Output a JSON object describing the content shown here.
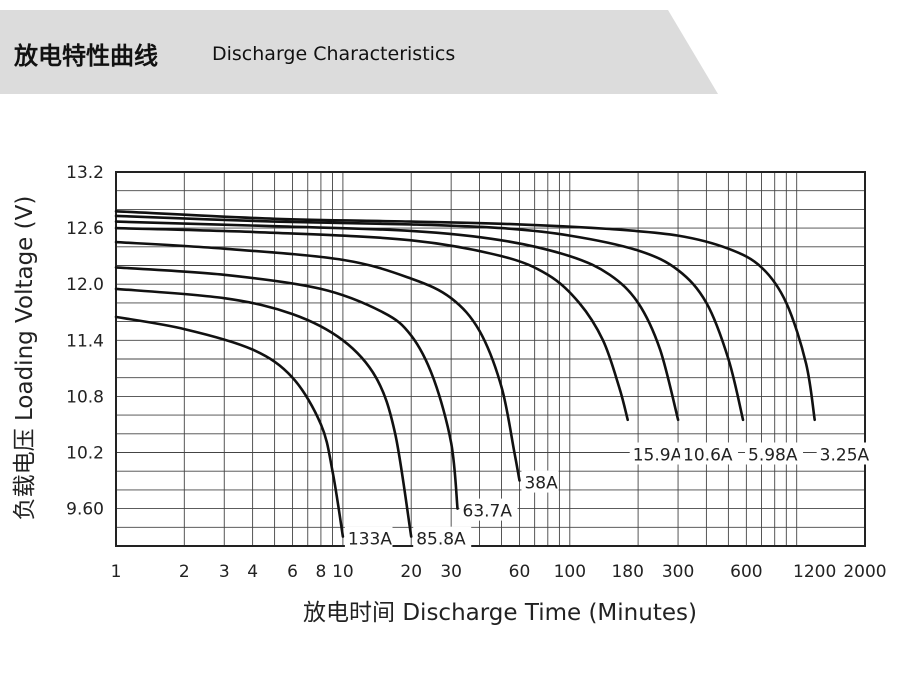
{
  "header": {
    "title_cn": "放电特性曲线",
    "title_en": "Discharge Characteristics"
  },
  "colors": {
    "banner": "#dcdcdc",
    "line": "#111111",
    "grid": "#444444"
  },
  "chart_data": {
    "type": "line",
    "title": "",
    "xlabel": "放电时间 Discharge Time (Minutes)",
    "ylabel": "负载电压 Loading Voltage (V)",
    "xscale": "log",
    "xlim": [
      1,
      2000
    ],
    "ylim": [
      9.2,
      13.2
    ],
    "xticks": [
      1,
      2,
      3,
      4,
      6,
      8,
      10,
      20,
      30,
      60,
      100,
      180,
      300,
      600,
      1200,
      2000
    ],
    "xtick_labels": [
      "1",
      "2",
      "3",
      "4",
      "6",
      "8",
      "10",
      "20",
      "30",
      "60",
      "100",
      "180",
      "300",
      "600",
      "1200",
      "2000"
    ],
    "yticks": [
      9.6,
      10.2,
      10.8,
      11.4,
      12.0,
      12.6,
      13.2
    ],
    "ytick_labels": [
      "9.60",
      "10.2",
      "10.8",
      "11.4",
      "12.0",
      "12.6",
      "13.2"
    ],
    "grid": true,
    "series": [
      {
        "name": "3.25A",
        "x": [
          1,
          5,
          20,
          60,
          150,
          300,
          500,
          700,
          900,
          1100,
          1200
        ],
        "y": [
          12.78,
          12.7,
          12.67,
          12.64,
          12.59,
          12.52,
          12.38,
          12.18,
          11.8,
          11.15,
          10.55
        ]
      },
      {
        "name": "5.98A",
        "x": [
          1,
          5,
          20,
          50,
          100,
          200,
          300,
          400,
          500,
          580
        ],
        "y": [
          12.73,
          12.67,
          12.64,
          12.6,
          12.52,
          12.36,
          12.15,
          11.8,
          11.2,
          10.55
        ]
      },
      {
        "name": "10.6A",
        "x": [
          1,
          5,
          20,
          50,
          100,
          150,
          200,
          250,
          300
        ],
        "y": [
          12.67,
          12.62,
          12.57,
          12.47,
          12.3,
          12.1,
          11.8,
          11.3,
          10.55
        ]
      },
      {
        "name": "15.9A",
        "x": [
          1,
          5,
          20,
          50,
          80,
          110,
          140,
          165,
          180
        ],
        "y": [
          12.6,
          12.55,
          12.47,
          12.3,
          12.1,
          11.8,
          11.4,
          10.9,
          10.55
        ]
      },
      {
        "name": "38A",
        "x": [
          1,
          3,
          10,
          20,
          30,
          40,
          50,
          57,
          60
        ],
        "y": [
          12.45,
          12.38,
          12.26,
          12.06,
          11.85,
          11.5,
          10.9,
          10.2,
          9.9
        ]
      },
      {
        "name": "63.7A",
        "x": [
          1,
          3,
          8,
          15,
          20,
          25,
          30,
          32
        ],
        "y": [
          12.18,
          12.1,
          11.95,
          11.7,
          11.45,
          11.0,
          10.3,
          9.6
        ]
      },
      {
        "name": "85.8A",
        "x": [
          1,
          3,
          6,
          10,
          14,
          17,
          20
        ],
        "y": [
          11.95,
          11.85,
          11.68,
          11.4,
          11.0,
          10.4,
          9.3
        ]
      },
      {
        "name": "133A",
        "x": [
          1,
          2,
          4,
          6,
          8,
          9,
          10
        ],
        "y": [
          11.65,
          11.52,
          11.3,
          11.0,
          10.5,
          10.0,
          9.3
        ]
      }
    ],
    "annotations": [
      {
        "text": "133A",
        "x": 10,
        "y": 9.3
      },
      {
        "text": "85.8A",
        "x": 20,
        "y": 9.3
      },
      {
        "text": "63.7A",
        "x": 32,
        "y": 9.6
      },
      {
        "text": "38A",
        "x": 60,
        "y": 9.9
      },
      {
        "text": "15.9A",
        "x": 180,
        "y": 10.2
      },
      {
        "text": "10.6A",
        "x": 300,
        "y": 10.2
      },
      {
        "text": "5.98A",
        "x": 580,
        "y": 10.2
      },
      {
        "text": "3.25A",
        "x": 1200,
        "y": 10.2
      }
    ]
  }
}
